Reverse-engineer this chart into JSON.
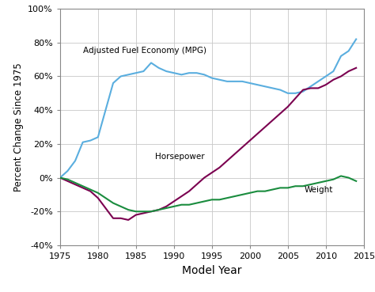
{
  "xlabel": "Model Year",
  "ylabel": "Percent Change Since 1975",
  "xlim": [
    1975,
    2015
  ],
  "ylim": [
    -0.4,
    1.0
  ],
  "yticks": [
    -0.4,
    -0.2,
    0.0,
    0.2,
    0.4,
    0.6,
    0.8,
    1.0
  ],
  "xticks": [
    1975,
    1980,
    1985,
    1990,
    1995,
    2000,
    2005,
    2010,
    2015
  ],
  "mpg_color": "#5aaedf",
  "hp_color": "#7b0050",
  "wt_color": "#1a8c3e",
  "background_color": "#ffffff",
  "grid_color": "#c8c8c8",
  "label_mpg": "Adjusted Fuel Economy (MPG)",
  "label_hp": "Horsepower",
  "label_wt": "Weight",
  "years": [
    1975,
    1976,
    1977,
    1978,
    1979,
    1980,
    1981,
    1982,
    1983,
    1984,
    1985,
    1986,
    1987,
    1988,
    1989,
    1990,
    1991,
    1992,
    1993,
    1994,
    1995,
    1996,
    1997,
    1998,
    1999,
    2000,
    2001,
    2002,
    2003,
    2004,
    2005,
    2006,
    2007,
    2008,
    2009,
    2010,
    2011,
    2012,
    2013,
    2014
  ],
  "mpg_values": [
    0.0,
    0.04,
    0.1,
    0.21,
    0.22,
    0.24,
    0.4,
    0.56,
    0.6,
    0.61,
    0.62,
    0.63,
    0.68,
    0.65,
    0.63,
    0.62,
    0.61,
    0.62,
    0.62,
    0.61,
    0.59,
    0.58,
    0.57,
    0.57,
    0.57,
    0.56,
    0.55,
    0.54,
    0.53,
    0.52,
    0.5,
    0.5,
    0.51,
    0.54,
    0.57,
    0.6,
    0.63,
    0.72,
    0.75,
    0.82
  ],
  "hp_values": [
    0.0,
    -0.02,
    -0.04,
    -0.06,
    -0.08,
    -0.12,
    -0.18,
    -0.24,
    -0.24,
    -0.25,
    -0.22,
    -0.21,
    -0.2,
    -0.19,
    -0.17,
    -0.14,
    -0.11,
    -0.08,
    -0.04,
    0.0,
    0.03,
    0.06,
    0.1,
    0.14,
    0.18,
    0.22,
    0.26,
    0.3,
    0.34,
    0.38,
    0.42,
    0.47,
    0.52,
    0.53,
    0.53,
    0.55,
    0.58,
    0.6,
    0.63,
    0.65
  ],
  "wt_values": [
    0.0,
    -0.01,
    -0.03,
    -0.05,
    -0.07,
    -0.09,
    -0.12,
    -0.15,
    -0.17,
    -0.19,
    -0.2,
    -0.2,
    -0.2,
    -0.19,
    -0.18,
    -0.17,
    -0.16,
    -0.16,
    -0.15,
    -0.14,
    -0.13,
    -0.13,
    -0.12,
    -0.11,
    -0.1,
    -0.09,
    -0.08,
    -0.08,
    -0.07,
    -0.06,
    -0.06,
    -0.05,
    -0.05,
    -0.04,
    -0.03,
    -0.02,
    -0.01,
    0.01,
    0.0,
    -0.02
  ]
}
